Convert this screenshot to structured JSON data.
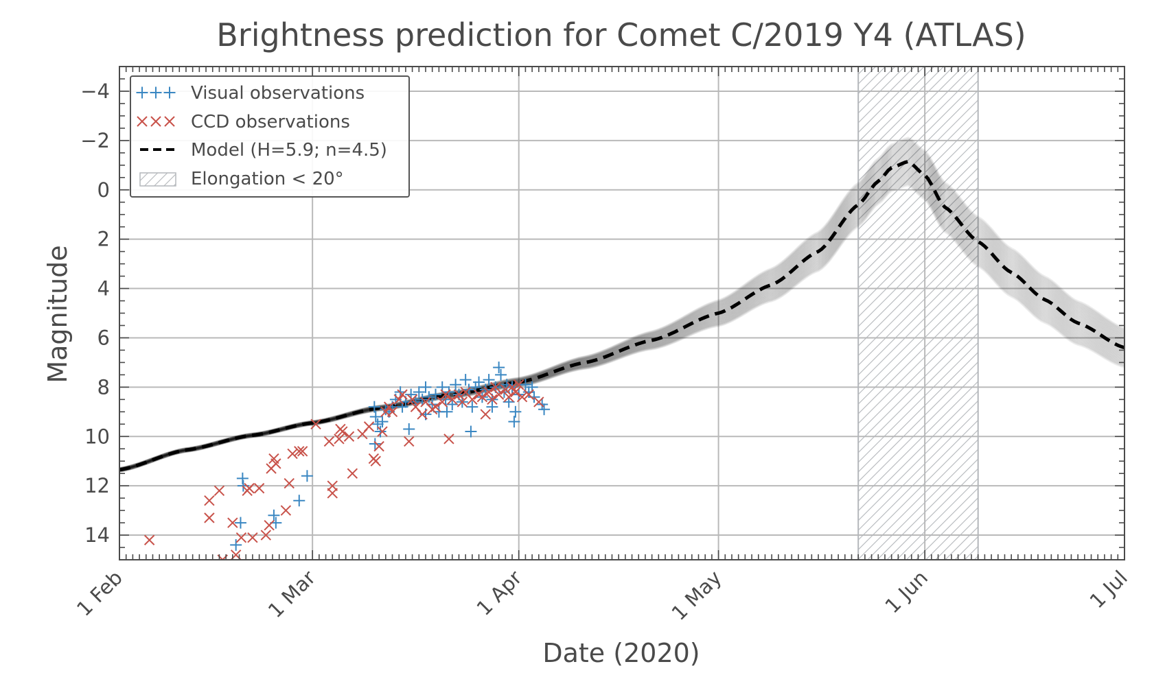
{
  "chart_data": {
    "type": "scatter",
    "title": "Brightness prediction for Comet C/2019 Y4 (ATLAS)",
    "xlabel": "Date (2020)",
    "ylabel": "Magnitude",
    "xlim_day_of_year": [
      32,
      183
    ],
    "ylim": [
      15,
      -5
    ],
    "y_inverted": true,
    "grid": true,
    "legend_position": "upper-left",
    "x_tick_values": [
      32,
      61,
      92,
      122,
      153,
      183
    ],
    "x_tick_labels": [
      "1 Feb",
      "1 Mar",
      "1 Apr",
      "1 May",
      "1 Jun",
      "1 Jul"
    ],
    "y_tick_values": [
      -4,
      -2,
      0,
      2,
      4,
      6,
      8,
      10,
      12,
      14
    ],
    "y_tick_labels": [
      "−4",
      "−2",
      "0",
      "2",
      "4",
      "6",
      "8",
      "10",
      "12",
      "14"
    ],
    "colors": {
      "visual": "#3a87c2",
      "ccd": "#c8524a",
      "model": "#000000",
      "hatch": "#b4b7bb"
    },
    "elongation_band_day_of_year": [
      143,
      161
    ],
    "model": {
      "H": 5.9,
      "n": 4.5,
      "peak_day_of_year": 150.5,
      "curve": [
        [
          32,
          11.35
        ],
        [
          42,
          10.55
        ],
        [
          52,
          9.95
        ],
        [
          61,
          9.45
        ],
        [
          71,
          8.85
        ],
        [
          82,
          8.3
        ],
        [
          92,
          7.8
        ],
        [
          102,
          7.0
        ],
        [
          112,
          6.1
        ],
        [
          122,
          5.0
        ],
        [
          130,
          3.85
        ],
        [
          137,
          2.5
        ],
        [
          143,
          0.6
        ],
        [
          146,
          -0.35
        ],
        [
          148,
          -0.9
        ],
        [
          150.5,
          -1.15
        ],
        [
          153,
          -0.6
        ],
        [
          156,
          0.7
        ],
        [
          161,
          2.1
        ],
        [
          166,
          3.35
        ],
        [
          171,
          4.45
        ],
        [
          176,
          5.4
        ],
        [
          183,
          6.4
        ]
      ]
    },
    "series": [
      {
        "name": "Visual observations",
        "marker": "+",
        "points": [
          [
            50.5,
            11.7
          ],
          [
            50.6,
            12.0
          ],
          [
            49.5,
            14.4
          ],
          [
            50.2,
            13.5
          ],
          [
            55.2,
            13.2
          ],
          [
            55.5,
            13.5
          ],
          [
            59.0,
            12.6
          ],
          [
            60.2,
            11.6
          ],
          [
            70.3,
            8.8
          ],
          [
            70.5,
            9.2
          ],
          [
            70.8,
            9.5
          ],
          [
            71.2,
            9.8
          ],
          [
            70.4,
            10.3
          ],
          [
            71.5,
            9.4
          ],
          [
            72.0,
            8.9
          ],
          [
            72.5,
            9.0
          ],
          [
            73.0,
            8.8
          ],
          [
            73.5,
            8.5
          ],
          [
            74.2,
            8.2
          ],
          [
            74.5,
            8.8
          ],
          [
            75.0,
            8.6
          ],
          [
            75.5,
            9.7
          ],
          [
            75.8,
            8.3
          ],
          [
            76.5,
            8.6
          ],
          [
            77.0,
            8.2
          ],
          [
            77.5,
            8.5
          ],
          [
            78.0,
            8.0
          ],
          [
            78.5,
            8.4
          ],
          [
            78.0,
            9.1
          ],
          [
            79.0,
            8.7
          ],
          [
            79.5,
            8.3
          ],
          [
            80.0,
            9.0
          ],
          [
            80.5,
            8.0
          ],
          [
            81.0,
            8.5
          ],
          [
            81.2,
            9.0
          ],
          [
            81.5,
            8.2
          ],
          [
            82.0,
            8.7
          ],
          [
            82.5,
            7.9
          ],
          [
            83.0,
            8.3
          ],
          [
            83.5,
            8.6
          ],
          [
            84.0,
            7.7
          ],
          [
            84.5,
            8.1
          ],
          [
            85.0,
            8.8
          ],
          [
            84.8,
            9.8
          ],
          [
            85.5,
            8.0
          ],
          [
            86.0,
            7.8
          ],
          [
            86.5,
            8.4
          ],
          [
            87.0,
            8.1
          ],
          [
            87.5,
            7.7
          ],
          [
            88.0,
            8.5
          ],
          [
            88.5,
            8.0
          ],
          [
            89.0,
            7.2
          ],
          [
            89.3,
            7.5
          ],
          [
            89.8,
            8.2
          ],
          [
            90.2,
            7.9
          ],
          [
            90.5,
            8.6
          ],
          [
            91.0,
            8.0
          ],
          [
            91.3,
            9.4
          ],
          [
            91.5,
            9.0
          ],
          [
            92.0,
            8.3
          ],
          [
            93.0,
            7.9
          ],
          [
            93.5,
            8.2
          ],
          [
            94.0,
            8.0
          ],
          [
            94.3,
            8.4
          ],
          [
            95.5,
            8.7
          ],
          [
            95.8,
            8.9
          ],
          [
            88.0,
            8.8
          ]
        ]
      },
      {
        "name": "CCD observations",
        "marker": "x",
        "points": [
          [
            36.5,
            14.2
          ],
          [
            47.5,
            15.0
          ],
          [
            47.0,
            12.2
          ],
          [
            45.5,
            12.6
          ],
          [
            45.5,
            13.3
          ],
          [
            49.0,
            13.5
          ],
          [
            49.5,
            14.8
          ],
          [
            50.3,
            14.1
          ],
          [
            51.5,
            12.1
          ],
          [
            52.0,
            14.1
          ],
          [
            53.0,
            12.1
          ],
          [
            51.2,
            12.2
          ],
          [
            54.5,
            13.6
          ],
          [
            54.0,
            14.0
          ],
          [
            54.8,
            11.3
          ],
          [
            55.2,
            10.9
          ],
          [
            55.5,
            11.1
          ],
          [
            57.0,
            13.0
          ],
          [
            58.0,
            10.7
          ],
          [
            59.0,
            10.6
          ],
          [
            59.5,
            10.6
          ],
          [
            57.5,
            11.9
          ],
          [
            61.5,
            9.5
          ],
          [
            63.5,
            10.2
          ],
          [
            64.0,
            12.0
          ],
          [
            64.0,
            12.3
          ],
          [
            65.0,
            10.1
          ],
          [
            65.2,
            9.7
          ],
          [
            65.5,
            9.8
          ],
          [
            66.5,
            10.0
          ],
          [
            67.0,
            11.5
          ],
          [
            68.5,
            9.9
          ],
          [
            69.5,
            9.6
          ],
          [
            70.2,
            10.9
          ],
          [
            70.5,
            11.0
          ],
          [
            71.0,
            10.4
          ],
          [
            71.5,
            9.8
          ],
          [
            72.0,
            9.0
          ],
          [
            72.5,
            8.8
          ],
          [
            73.0,
            9.0
          ],
          [
            74.0,
            8.5
          ],
          [
            74.5,
            8.3
          ],
          [
            75.5,
            10.2
          ],
          [
            76.0,
            8.5
          ],
          [
            76.5,
            8.8
          ],
          [
            77.5,
            9.1
          ],
          [
            78.0,
            8.6
          ],
          [
            79.0,
            8.9
          ],
          [
            79.5,
            8.8
          ],
          [
            80.5,
            8.6
          ],
          [
            81.0,
            8.3
          ],
          [
            81.5,
            10.1
          ],
          [
            82.0,
            8.5
          ],
          [
            83.0,
            8.3
          ],
          [
            83.5,
            8.6
          ],
          [
            84.0,
            8.2
          ],
          [
            85.0,
            8.5
          ],
          [
            86.0,
            8.3
          ],
          [
            86.5,
            8.4
          ],
          [
            87.0,
            9.1
          ],
          [
            87.5,
            8.2
          ],
          [
            88.0,
            8.5
          ],
          [
            88.5,
            8.0
          ],
          [
            89.0,
            8.3
          ],
          [
            90.0,
            8.1
          ],
          [
            90.5,
            8.4
          ],
          [
            91.0,
            8.0
          ],
          [
            91.5,
            8.2
          ],
          [
            92.0,
            7.9
          ],
          [
            92.5,
            8.4
          ],
          [
            93.5,
            8.3
          ],
          [
            95.0,
            8.6
          ]
        ]
      },
      {
        "name": "Model (H=5.9; n=4.5)",
        "marker": "dashed-line"
      },
      {
        "name": "Elongation < 20°",
        "marker": "hatched-band"
      }
    ]
  }
}
